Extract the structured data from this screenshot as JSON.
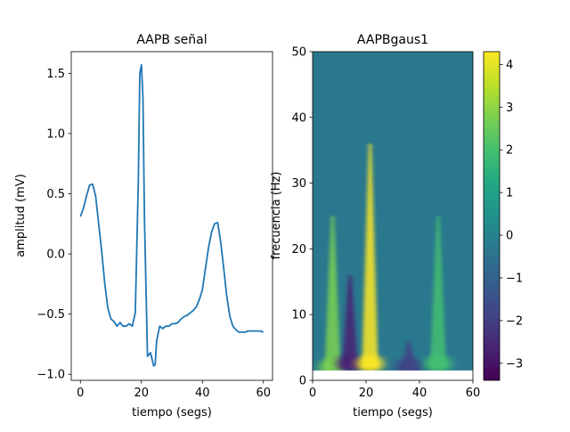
{
  "chart_data": [
    {
      "type": "line",
      "title": "AAPB señal",
      "xlabel": "tiempo (segs)",
      "ylabel": "amplitud (mV)",
      "xlim": [
        -3,
        63
      ],
      "ylim": [
        -1.05,
        1.68
      ],
      "xticks": [
        0,
        20,
        40,
        60
      ],
      "yticks": [
        -1.0,
        -0.5,
        0.0,
        0.5,
        1.0,
        1.5
      ],
      "xtick_labels": [
        "0",
        "20",
        "40",
        "60"
      ],
      "ytick_labels": [
        "−1.0",
        "−0.5",
        "0.0",
        "0.5",
        "1.0",
        "1.5"
      ],
      "line_color": "#1f77b4",
      "series": [
        {
          "x": [
            0,
            1,
            2,
            3,
            4,
            5,
            6,
            7,
            8,
            9,
            10,
            11,
            12,
            13,
            14,
            15,
            16,
            17,
            18,
            19,
            19.5,
            20,
            20.5,
            21,
            22,
            23,
            24,
            24.5,
            25,
            26,
            27,
            28,
            29,
            30,
            31,
            32,
            33,
            34,
            35,
            36,
            37,
            38,
            39,
            40,
            41,
            42,
            43,
            44,
            45,
            46,
            47,
            48,
            49,
            50,
            51,
            52,
            53,
            54,
            55,
            56,
            57,
            58,
            59,
            60
          ],
          "y": [
            0.31,
            0.38,
            0.48,
            0.57,
            0.58,
            0.48,
            0.25,
            0.02,
            -0.25,
            -0.45,
            -0.54,
            -0.56,
            -0.6,
            -0.57,
            -0.6,
            -0.6,
            -0.58,
            -0.6,
            -0.49,
            0.6,
            1.5,
            1.57,
            1.3,
            0.3,
            -0.85,
            -0.82,
            -0.93,
            -0.92,
            -0.72,
            -0.6,
            -0.62,
            -0.6,
            -0.6,
            -0.58,
            -0.58,
            -0.57,
            -0.54,
            -0.52,
            -0.51,
            -0.49,
            -0.47,
            -0.44,
            -0.38,
            -0.3,
            -0.12,
            0.05,
            0.18,
            0.25,
            0.26,
            0.1,
            -0.12,
            -0.35,
            -0.52,
            -0.6,
            -0.63,
            -0.65,
            -0.65,
            -0.65,
            -0.64,
            -0.64,
            -0.64,
            -0.64,
            -0.64,
            -0.65
          ]
        }
      ]
    },
    {
      "type": "heatmap",
      "title": "AAPBgaus1",
      "xlabel": "tiempo (segs)",
      "ylabel": "frecuencia (Hz)",
      "xlim": [
        0,
        60
      ],
      "ylim": [
        0,
        50
      ],
      "xticks": [
        0,
        20,
        40,
        60
      ],
      "yticks": [
        0,
        10,
        20,
        30,
        40,
        50
      ],
      "xtick_labels": [
        "0",
        "20",
        "40",
        "60"
      ],
      "ytick_labels": [
        "0",
        "10",
        "20",
        "30",
        "40",
        "50"
      ],
      "colormap": "viridis",
      "colorbar": {
        "range": [
          -3.4,
          4.3
        ],
        "ticks": [
          -3,
          -2,
          -1,
          0,
          1,
          2,
          3,
          4
        ],
        "tick_labels": [
          "−3",
          "−2",
          "−1",
          "0",
          "1",
          "2",
          "3",
          "4"
        ]
      },
      "background_value": 0.2,
      "empty_below_frequency": 1.5,
      "features": [
        {
          "t": 7.5,
          "f_low": 1.5,
          "f_high": 25,
          "value": 2.4
        },
        {
          "t": 14,
          "f_low": 2,
          "f_high": 16,
          "value": -2.5
        },
        {
          "t": 21.5,
          "f_low": 2,
          "f_high": 36,
          "value": 4.2
        },
        {
          "t": 36,
          "f_low": 1.5,
          "f_high": 6,
          "value": -1.6
        },
        {
          "t": 47,
          "f_low": 2,
          "f_high": 25,
          "value": 2.2
        }
      ]
    }
  ]
}
